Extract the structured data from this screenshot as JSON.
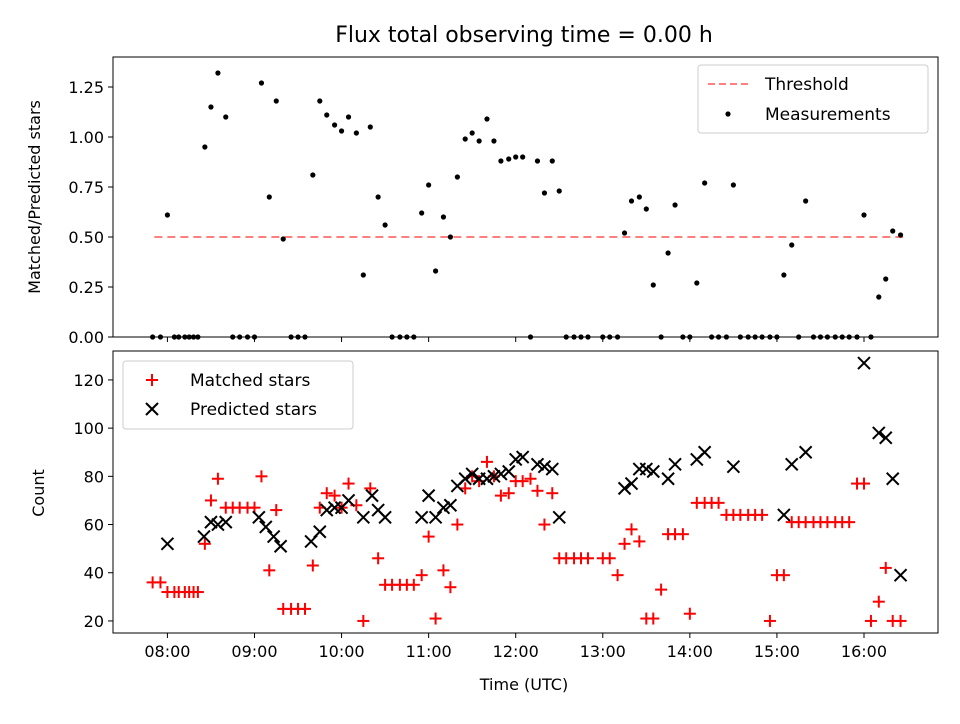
{
  "chart_data": [
    {
      "type": "scatter",
      "title": "Flux total observing time = 0.00 h",
      "xlabel": "",
      "ylabel": "Matched/Predicted stars",
      "xlim": [
        7.375,
        16.85
      ],
      "ylim": [
        0.0,
        1.4
      ],
      "yticks": [
        0.0,
        0.25,
        0.5,
        0.75,
        1.0,
        1.25
      ],
      "ytick_labels": [
        "0.00",
        "0.25",
        "0.50",
        "0.75",
        "1.00",
        "1.25"
      ],
      "xticks": [
        8,
        9,
        10,
        11,
        12,
        13,
        14,
        15,
        16
      ],
      "show_xtick_labels": false,
      "grid": false,
      "legend_position": "top-right",
      "threshold": {
        "name": "Threshold",
        "y": 0.5,
        "x": [
          7.85,
          16.45
        ],
        "color": "#ff7f7f"
      },
      "series": [
        {
          "name": "Measurements",
          "color": "#000000",
          "marker": "dot",
          "x": [
            7.83,
            7.92,
            8.0,
            8.08,
            8.13,
            8.2,
            8.25,
            8.3,
            8.35,
            8.43,
            8.5,
            8.58,
            8.67,
            8.75,
            8.83,
            8.92,
            9.0,
            9.08,
            9.17,
            9.25,
            9.33,
            9.42,
            9.5,
            9.58,
            9.67,
            9.75,
            9.83,
            9.92,
            10.0,
            10.08,
            10.17,
            10.25,
            10.33,
            10.42,
            10.5,
            10.58,
            10.67,
            10.75,
            10.83,
            10.92,
            11.0,
            11.08,
            11.17,
            11.25,
            11.33,
            11.42,
            11.5,
            11.58,
            11.67,
            11.75,
            11.83,
            11.92,
            12.0,
            12.08,
            12.17,
            12.25,
            12.33,
            12.42,
            12.5,
            12.58,
            12.67,
            12.75,
            12.83,
            13.0,
            13.08,
            13.17,
            13.25,
            13.33,
            13.42,
            13.5,
            13.58,
            13.67,
            13.75,
            13.83,
            13.92,
            14.0,
            14.08,
            14.17,
            14.25,
            14.33,
            14.42,
            14.5,
            14.58,
            14.67,
            14.75,
            14.83,
            14.92,
            15.0,
            15.08,
            15.17,
            15.25,
            15.33,
            15.42,
            15.5,
            15.58,
            15.67,
            15.75,
            15.83,
            15.92,
            16.0,
            16.08,
            16.17,
            16.25,
            16.33,
            16.42
          ],
          "y": [
            0.0,
            0.0,
            0.61,
            0.0,
            0.0,
            0.0,
            0.0,
            0.0,
            0.0,
            0.95,
            1.15,
            1.32,
            1.1,
            0.0,
            0.0,
            0.0,
            0.0,
            1.27,
            0.7,
            1.18,
            0.49,
            0.0,
            0.0,
            0.0,
            0.81,
            1.18,
            1.11,
            1.06,
            1.03,
            1.1,
            1.02,
            0.31,
            1.05,
            0.7,
            0.56,
            0.0,
            0.0,
            0.0,
            0.0,
            0.62,
            0.76,
            0.33,
            0.6,
            0.5,
            0.8,
            0.99,
            1.02,
            0.98,
            1.09,
            0.98,
            0.88,
            0.89,
            0.9,
            0.9,
            0.0,
            0.88,
            0.72,
            0.88,
            0.73,
            0.0,
            0.0,
            0.0,
            0.0,
            0.0,
            0.0,
            0.0,
            0.52,
            0.68,
            0.7,
            0.64,
            0.26,
            0.0,
            0.42,
            0.66,
            0.0,
            0.0,
            0.27,
            0.77,
            0.0,
            0.0,
            0.0,
            0.76,
            0.0,
            0.0,
            0.0,
            0.0,
            0.0,
            0.0,
            0.31,
            0.46,
            0.0,
            0.68,
            0.0,
            0.0,
            0.0,
            0.0,
            0.0,
            0.0,
            0.0,
            0.61,
            0.0,
            0.2,
            0.29,
            0.53,
            0.51
          ]
        }
      ]
    },
    {
      "type": "scatter",
      "title": "",
      "xlabel": "Time (UTC)",
      "ylabel": "Count",
      "xlim": [
        7.375,
        16.85
      ],
      "ylim": [
        15,
        132
      ],
      "yticks": [
        20,
        40,
        60,
        80,
        100,
        120
      ],
      "ytick_labels": [
        "20",
        "40",
        "60",
        "80",
        "100",
        "120"
      ],
      "xticks": [
        8,
        9,
        10,
        11,
        12,
        13,
        14,
        15,
        16
      ],
      "xtick_labels": [
        "08:00",
        "09:00",
        "10:00",
        "11:00",
        "12:00",
        "13:00",
        "14:00",
        "15:00",
        "16:00"
      ],
      "grid": false,
      "legend_position": "top-left",
      "series": [
        {
          "name": "Matched stars",
          "color": "#ff0000",
          "marker": "plus",
          "x": [
            7.83,
            7.92,
            8.0,
            8.08,
            8.13,
            8.2,
            8.25,
            8.3,
            8.35,
            8.43,
            8.5,
            8.58,
            8.67,
            8.75,
            8.83,
            8.92,
            9.0,
            9.08,
            9.17,
            9.25,
            9.33,
            9.42,
            9.5,
            9.58,
            9.67,
            9.75,
            9.83,
            9.92,
            10.0,
            10.08,
            10.17,
            10.25,
            10.33,
            10.42,
            10.5,
            10.58,
            10.67,
            10.75,
            10.83,
            10.92,
            11.0,
            11.08,
            11.17,
            11.25,
            11.33,
            11.42,
            11.5,
            11.58,
            11.67,
            11.75,
            11.83,
            11.92,
            12.0,
            12.08,
            12.17,
            12.25,
            12.33,
            12.42,
            12.5,
            12.58,
            12.67,
            12.75,
            12.83,
            13.0,
            13.08,
            13.17,
            13.25,
            13.33,
            13.42,
            13.5,
            13.58,
            13.67,
            13.75,
            13.83,
            13.92,
            14.0,
            14.08,
            14.17,
            14.25,
            14.33,
            14.42,
            14.5,
            14.58,
            14.67,
            14.75,
            14.83,
            14.92,
            15.0,
            15.08,
            15.17,
            15.25,
            15.33,
            15.42,
            15.5,
            15.58,
            15.67,
            15.75,
            15.83,
            15.92,
            16.0,
            16.08,
            16.17,
            16.25,
            16.33,
            16.42
          ],
          "y": [
            36,
            36,
            32,
            32,
            32,
            32,
            32,
            32,
            32,
            52,
            70,
            79,
            67,
            67,
            67,
            67,
            67,
            80,
            41,
            66,
            25,
            25,
            25,
            25,
            43,
            67,
            73,
            72,
            67,
            77,
            68,
            20,
            75,
            46,
            35,
            35,
            35,
            35,
            35,
            39,
            55,
            21,
            41,
            34,
            60,
            75,
            80,
            78,
            86,
            80,
            72,
            73,
            78,
            78,
            79,
            74,
            60,
            73,
            46,
            46,
            46,
            46,
            46,
            46,
            46,
            39,
            52,
            58,
            53,
            21,
            21,
            33,
            56,
            56,
            56,
            23,
            69,
            69,
            69,
            69,
            64,
            64,
            64,
            64,
            64,
            64,
            20,
            39,
            39,
            61,
            61,
            61,
            61,
            61,
            61,
            61,
            61,
            61,
            77,
            77,
            20,
            28,
            42,
            20,
            20
          ]
        },
        {
          "name": "Predicted stars",
          "color": "#000000",
          "marker": "x",
          "x": [
            8.0,
            8.42,
            8.5,
            8.58,
            8.67,
            9.05,
            9.13,
            9.22,
            9.3,
            9.65,
            9.75,
            9.83,
            9.92,
            10.0,
            10.08,
            10.25,
            10.35,
            10.42,
            10.5,
            10.92,
            11.0,
            11.08,
            11.17,
            11.25,
            11.33,
            11.42,
            11.5,
            11.58,
            11.67,
            11.75,
            11.83,
            11.92,
            12.0,
            12.08,
            12.25,
            12.33,
            12.42,
            12.5,
            13.25,
            13.33,
            13.42,
            13.5,
            13.58,
            13.75,
            13.83,
            14.08,
            14.17,
            14.5,
            15.08,
            15.17,
            15.33,
            16.0,
            16.17,
            16.25,
            16.33,
            16.42
          ],
          "y": [
            52,
            55,
            61,
            60,
            61,
            63,
            59,
            55,
            51,
            53,
            57,
            66,
            67,
            67,
            70,
            63,
            72,
            66,
            63,
            63,
            72,
            63,
            67,
            68,
            76,
            79,
            81,
            79,
            79,
            80,
            81,
            82,
            87,
            88,
            85,
            84,
            83,
            63,
            75,
            77,
            83,
            83,
            82,
            79,
            85,
            87,
            90,
            84,
            64,
            85,
            90,
            127,
            98,
            96,
            79,
            39
          ]
        }
      ]
    }
  ]
}
